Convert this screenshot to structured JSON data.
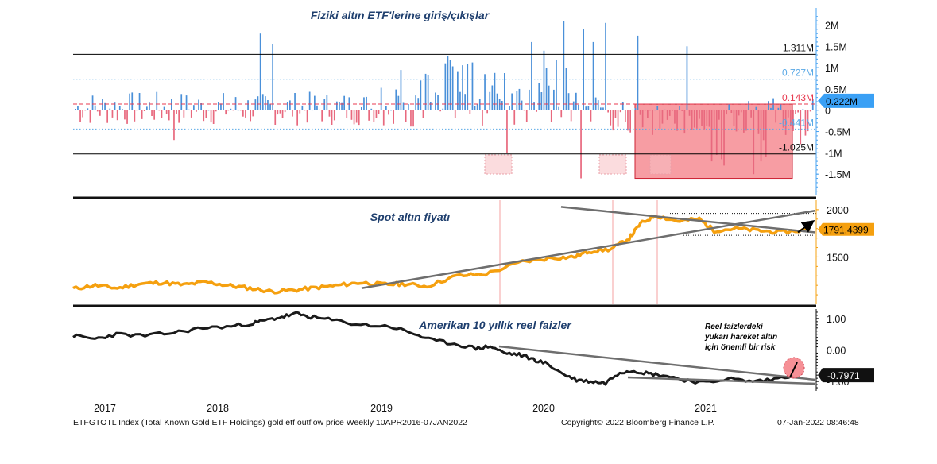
{
  "chart_data": [
    {
      "type": "bar",
      "title": "Fiziki altın ETF'lerine giriş/çıkışlar",
      "y_ticks": [
        "2M",
        "1.5M",
        "1M",
        "0.5M",
        "0",
        "-0.5M",
        "-1M",
        "-1.5M"
      ],
      "ylim": [
        -2.0,
        2.4
      ],
      "reference_lines": [
        {
          "label": "1.311M",
          "value": 1.311,
          "color": "#000000",
          "style": "solid"
        },
        {
          "label": "0.727M",
          "value": 0.727,
          "color": "#5aa9e6",
          "style": "dotted"
        },
        {
          "label": "0.143M",
          "value": 0.143,
          "color": "#e8394f",
          "style": "dashed"
        },
        {
          "label": "-0.441M",
          "value": -0.441,
          "color": "#5aa9e6",
          "style": "dotted"
        },
        {
          "label": "-1.025M",
          "value": -1.025,
          "color": "#000000",
          "style": "solid"
        }
      ],
      "last_value_label": "0.222M",
      "last_value": 0.222,
      "positive_color": "#4a90d9",
      "negative_color": "#e8697e",
      "highlight_color": "#f47c84"
    },
    {
      "type": "line",
      "title": "Spot altın fiyatı",
      "y_ticks": [
        "2000",
        "1500"
      ],
      "ylim": [
        1000,
        2100
      ],
      "last_value_label": "1791.4399",
      "last_value": 1791.44,
      "line_color": "#f5a00f"
    },
    {
      "type": "line",
      "title": "Amerikan 10 yıllık reel faizler",
      "y_ticks": [
        "1.00",
        "0.00",
        "-1.00"
      ],
      "ylim": [
        -1.3,
        1.3
      ],
      "last_value_label": "-0.7971",
      "last_value": -0.7971,
      "line_color": "#1a1a1a",
      "annotation": "Reel faizlerdeki yukarı hareket altın için önemli bir risk"
    }
  ],
  "x_axis": {
    "labels": [
      "2017",
      "2018",
      "2019",
      "2020",
      "2021"
    ]
  },
  "footer": {
    "left": "ETFGTOTL Index (Total Known Gold ETF Holdings) gold etf outflow  price  Weekly 10APR2016-07JAN2022",
    "center": "Copyright© 2022 Bloomberg Finance L.P.",
    "right": "07-Jan-2022 08:46:48"
  }
}
